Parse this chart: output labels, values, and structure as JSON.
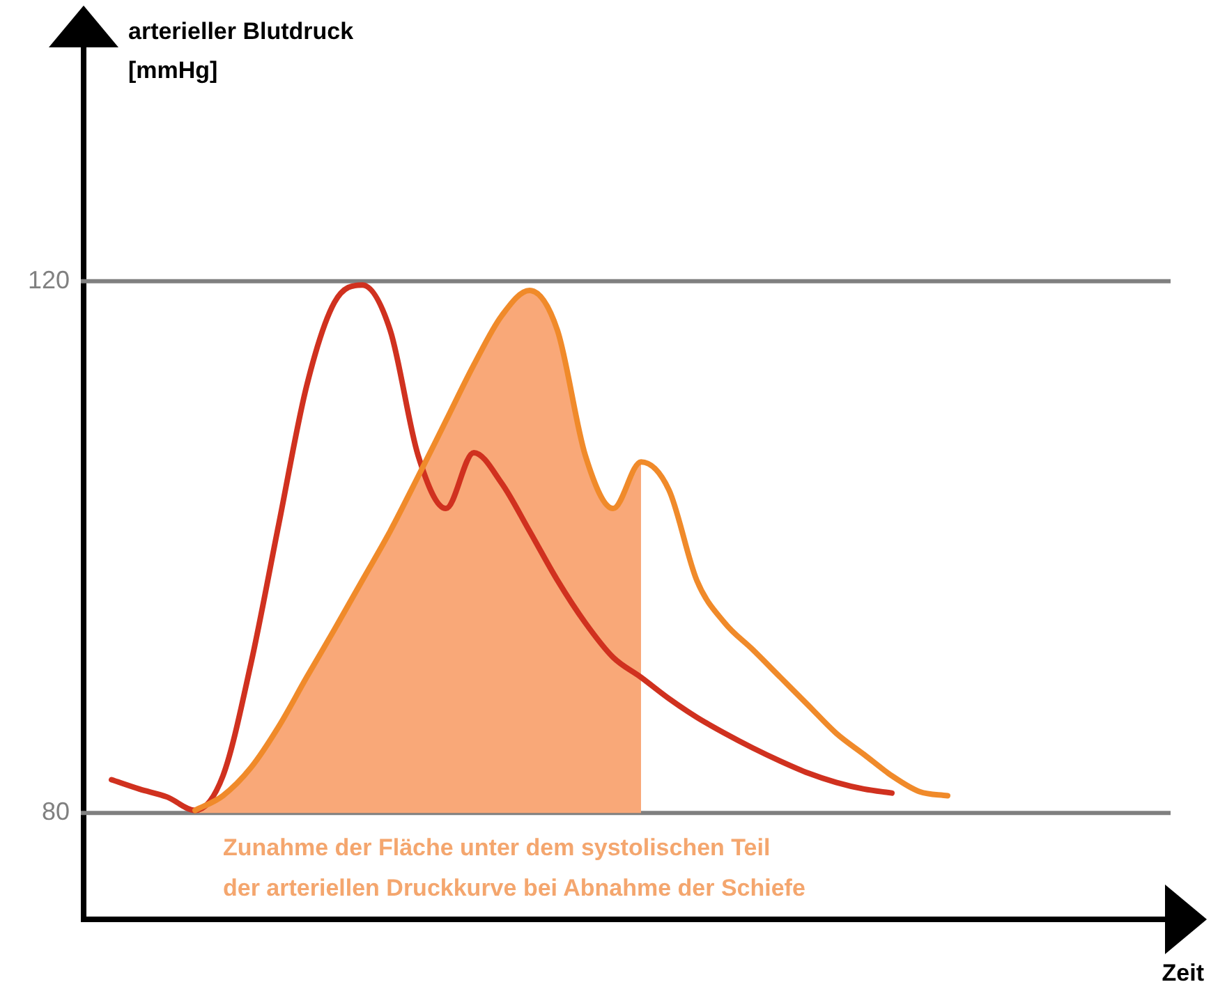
{
  "chart_data": {
    "type": "line",
    "xlabel": "Zeit",
    "ylabel": "arterieller Blutdruck [mmHg]",
    "categories": [
      null,
      null,
      null,
      null,
      null,
      null,
      null,
      null,
      null,
      null,
      null,
      null,
      null,
      null,
      null,
      null,
      null,
      null,
      null,
      null,
      null,
      null,
      null,
      null,
      null,
      null,
      null,
      null,
      null,
      null,
      null,
      null,
      null,
      null,
      null,
      null,
      null,
      null,
      null,
      null
    ],
    "ylim": [
      72,
      138
    ],
    "yticks": [
      80,
      120
    ],
    "grid": false,
    "legend": false,
    "marker": "none",
    "line_style": "solid",
    "ref_lines": [
      {
        "axis": "y",
        "value": 120,
        "color": "#808080"
      },
      {
        "axis": "y",
        "value": 80,
        "color": "#808080"
      }
    ],
    "series": [
      {
        "type": "area",
        "color": "#f9a878",
        "values": [
          null,
          null,
          null,
          null,
          80.2,
          81.3,
          83.4,
          86.5,
          90.2,
          93.8,
          97.5,
          101.2,
          105.3,
          109.5,
          113.7,
          117.4,
          119.3,
          116.3,
          106.9,
          102.9,
          106.4,
          null,
          null,
          null,
          null,
          null,
          null,
          null,
          null,
          null,
          null,
          null,
          null,
          null,
          null,
          null,
          null,
          null,
          null,
          null
        ]
      },
      {
        "color": "#d0311f",
        "values": [
          null,
          82.5,
          81.8,
          81.2,
          80.2,
          82.8,
          91.2,
          101.7,
          112.1,
          118.4,
          119.7,
          116.3,
          106.9,
          102.9,
          107.1,
          104.8,
          101.2,
          97.5,
          94.3,
          91.7,
          90.2,
          88.6,
          87.2,
          86,
          84.9,
          83.9,
          83,
          82.3,
          81.8,
          81.5,
          null,
          null,
          null,
          null,
          null,
          null,
          null,
          null,
          null,
          null
        ]
      },
      {
        "color": "#f08a2a",
        "values": [
          null,
          null,
          null,
          null,
          80.2,
          81.3,
          83.4,
          86.5,
          90.2,
          93.8,
          97.5,
          101.2,
          105.3,
          109.5,
          113.7,
          117.4,
          119.3,
          116.3,
          106.9,
          102.9,
          106.4,
          104.3,
          97.5,
          94.3,
          92.3,
          90.2,
          88.1,
          86,
          84.4,
          82.8,
          81.6,
          81.3,
          null,
          null,
          null,
          null,
          null,
          null,
          null,
          null
        ]
      }
    ],
    "annotations": [
      "Zunahme der Fläche unter dem systolischen Teil",
      "der arteriellen Druckkurve bei Abnahme der Schiefe"
    ]
  }
}
